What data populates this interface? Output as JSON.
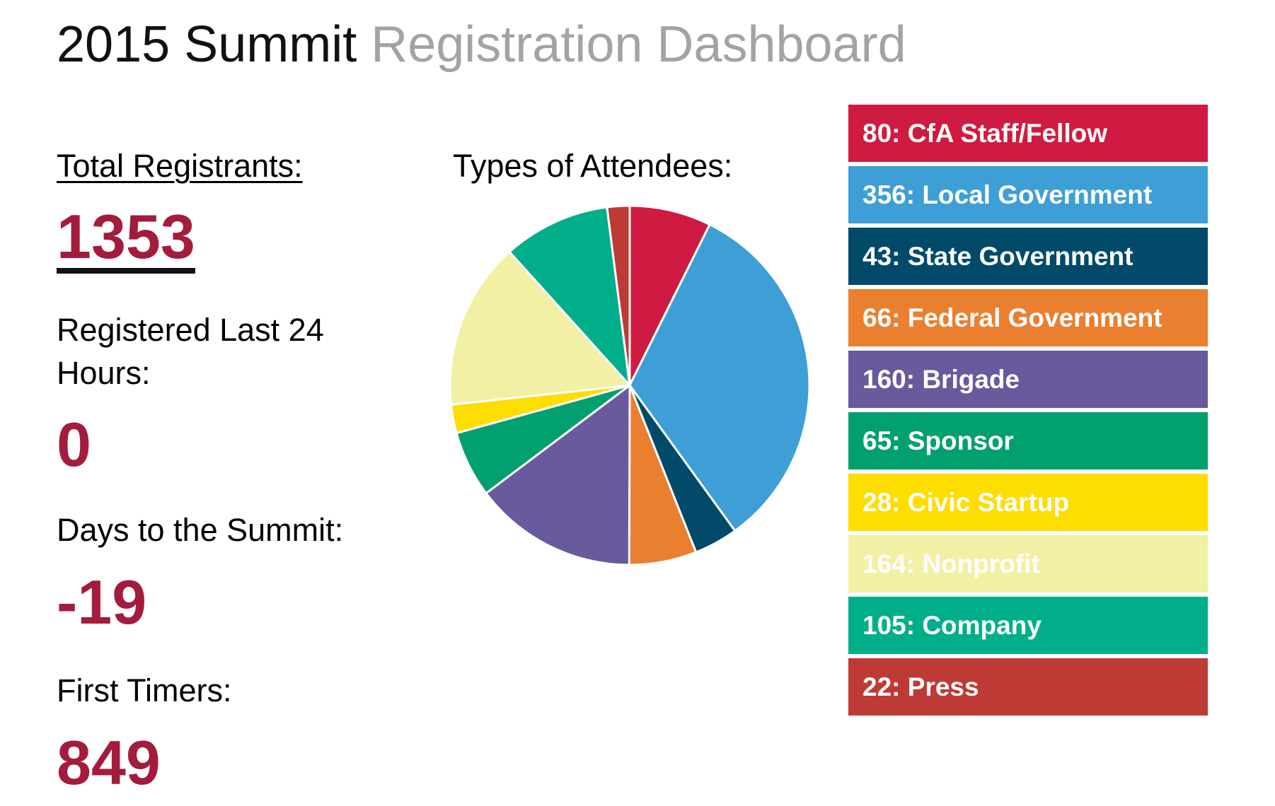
{
  "title": {
    "primary": "2015 Summit",
    "secondary": "Registration Dashboard"
  },
  "stats": {
    "total": {
      "label": "Total Registrants:",
      "value": "1353"
    },
    "last24": {
      "label": "Registered Last 24 Hours:",
      "value": "0"
    },
    "days": {
      "label": "Days to the Summit:",
      "value": "-19"
    },
    "first": {
      "label": "First Timers:",
      "value": "849"
    }
  },
  "colors": {
    "accent": "#a31c3d",
    "title_light": "#a3a3a3"
  },
  "chart_data": {
    "type": "pie",
    "title": "Types of Attendees:",
    "categories": [
      "CfA Staff/Fellow",
      "Local Government",
      "State Government",
      "Federal Government",
      "Brigade",
      "Sponsor",
      "Civic Startup",
      "Nonprofit",
      "Company",
      "Press"
    ],
    "values": [
      80,
      356,
      43,
      66,
      160,
      65,
      28,
      164,
      105,
      22
    ],
    "colors": [
      "#cf1b41",
      "#3d9fd5",
      "#014a69",
      "#e97f2f",
      "#685a9d",
      "#03a06f",
      "#fedd00",
      "#f1f0a5",
      "#00af8a",
      "#be3a35"
    ],
    "legend_labels": [
      "80: CfA Staff/Fellow",
      "356: Local Government",
      "43: State Government",
      "66: Federal Government",
      "160: Brigade",
      "65: Sponsor",
      "28: Civic Startup",
      "164: Nonprofit",
      "105: Company",
      "22: Press"
    ],
    "legend_placement": "right"
  }
}
